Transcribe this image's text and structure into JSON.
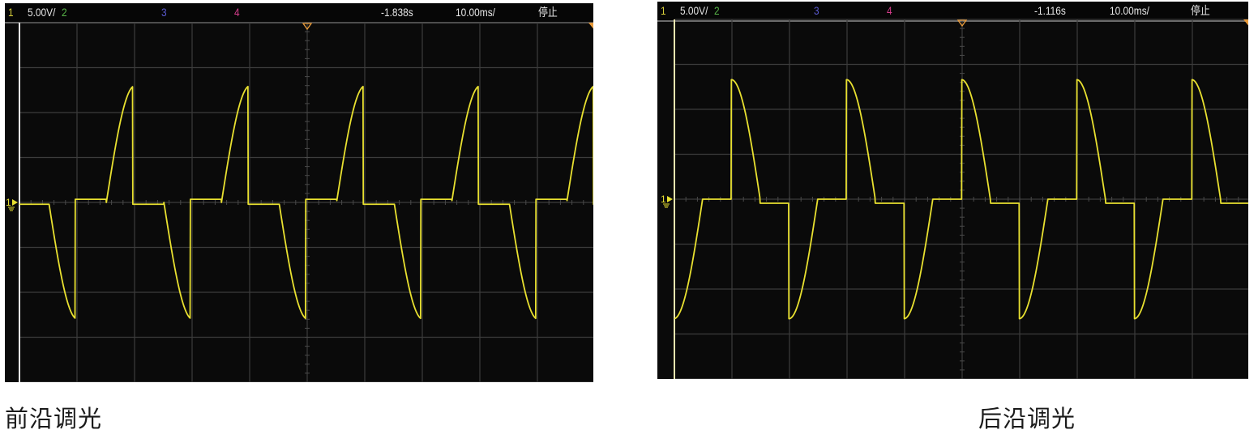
{
  "scopes": [
    {
      "header": {
        "ch1": "1",
        "scale": "5.00V/",
        "ch2": "2",
        "ch3": "3",
        "ch4": "4",
        "delay": "-1.838s",
        "timebase": "10.00ms/",
        "status": "停止"
      },
      "caption": "前沿调光",
      "ground_marker": "1"
    },
    {
      "header": {
        "ch1": "1",
        "scale": "5.00V/",
        "ch2": "2",
        "ch3": "3",
        "ch4": "4",
        "delay": "-1.116s",
        "timebase": "10.00ms/",
        "status": "停止"
      },
      "caption": "后沿调光",
      "ground_marker": "1"
    }
  ],
  "colors": {
    "trace": "#e8e030",
    "grid": "#3c3c3c",
    "background": "#0a0a0a",
    "trigger_marker": "#e89a3a"
  },
  "chart_data": [
    {
      "type": "line",
      "title": "",
      "xlabel": "",
      "ylabel": "",
      "x_units": "ms",
      "y_units": "V",
      "xlim": [
        0,
        100
      ],
      "ylim": [
        -20,
        20
      ],
      "x_divisions": 10,
      "y_divisions": 8,
      "volts_per_div": 5,
      "ms_per_div": 10,
      "grid": true,
      "waveform": {
        "amplitude_V": 13,
        "period_ms": 20,
        "positive_zero_crossing_ms": -4.9,
        "conduction_window": "start-of-half-cycle",
        "conduction_ms": 4.6,
        "off_level_V": {
          "positive_half": -0.2,
          "negative_half": 0.35
        }
      }
    },
    {
      "type": "line",
      "title": "",
      "xlabel": "",
      "ylabel": "",
      "x_units": "ms",
      "y_units": "V",
      "xlim": [
        0,
        100
      ],
      "ylim": [
        -20,
        20
      ],
      "x_divisions": 10,
      "y_divisions": 8,
      "volts_per_div": 5,
      "ms_per_div": 10,
      "grid": true,
      "waveform": {
        "amplitude_V": 13.3,
        "period_ms": 20,
        "positive_zero_crossing_ms": 4.9,
        "conduction_window": "end-of-half-cycle",
        "conduction_ms": 5.0,
        "off_level_V": {
          "positive_half": 0,
          "negative_half": -0.45
        }
      }
    }
  ]
}
